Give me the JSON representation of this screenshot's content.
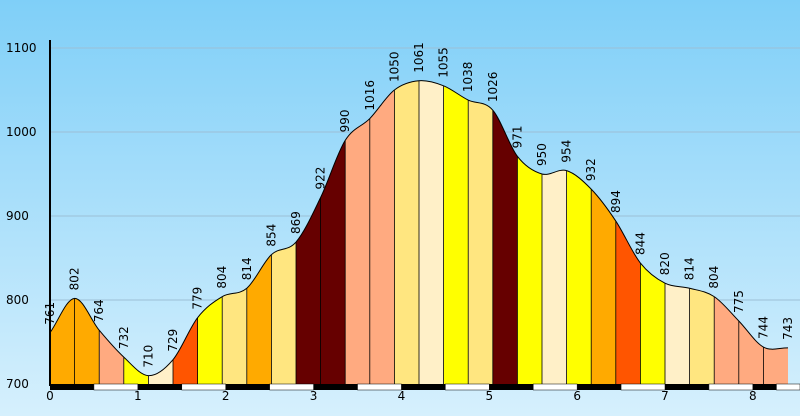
{
  "chart_data": {
    "type": "area",
    "title": "",
    "xlabel": "",
    "ylabel": "",
    "x_ticks": [
      "0",
      "1",
      "2",
      "3",
      "4",
      "5",
      "6",
      "7",
      "8"
    ],
    "y_ticks": [
      "700",
      "800",
      "900",
      "1000",
      "1100"
    ],
    "xlim": [
      0,
      8.4
    ],
    "ylim": [
      700,
      1100
    ],
    "grid": true,
    "background_gradient": [
      "#7fcff8",
      "#d6f0fd"
    ],
    "points": [
      {
        "x": 0.0,
        "y": 761,
        "label": "761",
        "color": "#ffaa00"
      },
      {
        "x": 0.28,
        "y": 802,
        "label": "802",
        "color": "#ffaa00"
      },
      {
        "x": 0.56,
        "y": 764,
        "label": "764",
        "color": "#ffaa80"
      },
      {
        "x": 0.84,
        "y": 732,
        "label": "732",
        "color": "#ffff00"
      },
      {
        "x": 1.12,
        "y": 710,
        "label": "710",
        "color": "#fff0c8"
      },
      {
        "x": 1.4,
        "y": 729,
        "label": "729",
        "color": "#ff5500"
      },
      {
        "x": 1.68,
        "y": 779,
        "label": "779",
        "color": "#ffff00"
      },
      {
        "x": 1.96,
        "y": 804,
        "label": "804",
        "color": "#ffe680"
      },
      {
        "x": 2.24,
        "y": 814,
        "label": "814",
        "color": "#ffaa00"
      },
      {
        "x": 2.52,
        "y": 854,
        "label": "854",
        "color": "#ffe680"
      },
      {
        "x": 2.8,
        "y": 869,
        "label": "869",
        "color": "#660000"
      },
      {
        "x": 3.08,
        "y": 922,
        "label": "922",
        "color": "#660000"
      },
      {
        "x": 3.36,
        "y": 990,
        "label": "990",
        "color": "#ffaa80"
      },
      {
        "x": 3.64,
        "y": 1016,
        "label": "1016",
        "color": "#ffaa80"
      },
      {
        "x": 3.92,
        "y": 1050,
        "label": "1050",
        "color": "#ffe680"
      },
      {
        "x": 4.2,
        "y": 1061,
        "label": "1061",
        "color": "#fff0c8"
      },
      {
        "x": 4.48,
        "y": 1055,
        "label": "1055",
        "color": "#ffff00"
      },
      {
        "x": 4.76,
        "y": 1038,
        "label": "1038",
        "color": "#ffe680"
      },
      {
        "x": 5.04,
        "y": 1026,
        "label": "1026",
        "color": "#660000"
      },
      {
        "x": 5.32,
        "y": 971,
        "label": "971",
        "color": "#ffff00"
      },
      {
        "x": 5.6,
        "y": 950,
        "label": "950",
        "color": "#fff0c8"
      },
      {
        "x": 5.88,
        "y": 954,
        "label": "954",
        "color": "#ffff00"
      },
      {
        "x": 6.16,
        "y": 932,
        "label": "932",
        "color": "#ffaa00"
      },
      {
        "x": 6.44,
        "y": 894,
        "label": "894",
        "color": "#ff5500"
      },
      {
        "x": 6.72,
        "y": 844,
        "label": "844",
        "color": "#ffff00"
      },
      {
        "x": 7.0,
        "y": 820,
        "label": "820",
        "color": "#fff0c8"
      },
      {
        "x": 7.28,
        "y": 814,
        "label": "814",
        "color": "#ffe680"
      },
      {
        "x": 7.56,
        "y": 804,
        "label": "804",
        "color": "#ffaa80"
      },
      {
        "x": 7.84,
        "y": 775,
        "label": "775",
        "color": "#ffaa80"
      },
      {
        "x": 8.12,
        "y": 744,
        "label": "744",
        "color": "#ffaa80"
      },
      {
        "x": 8.4,
        "y": 743,
        "label": "743",
        "color": "#ffaa80"
      }
    ]
  }
}
